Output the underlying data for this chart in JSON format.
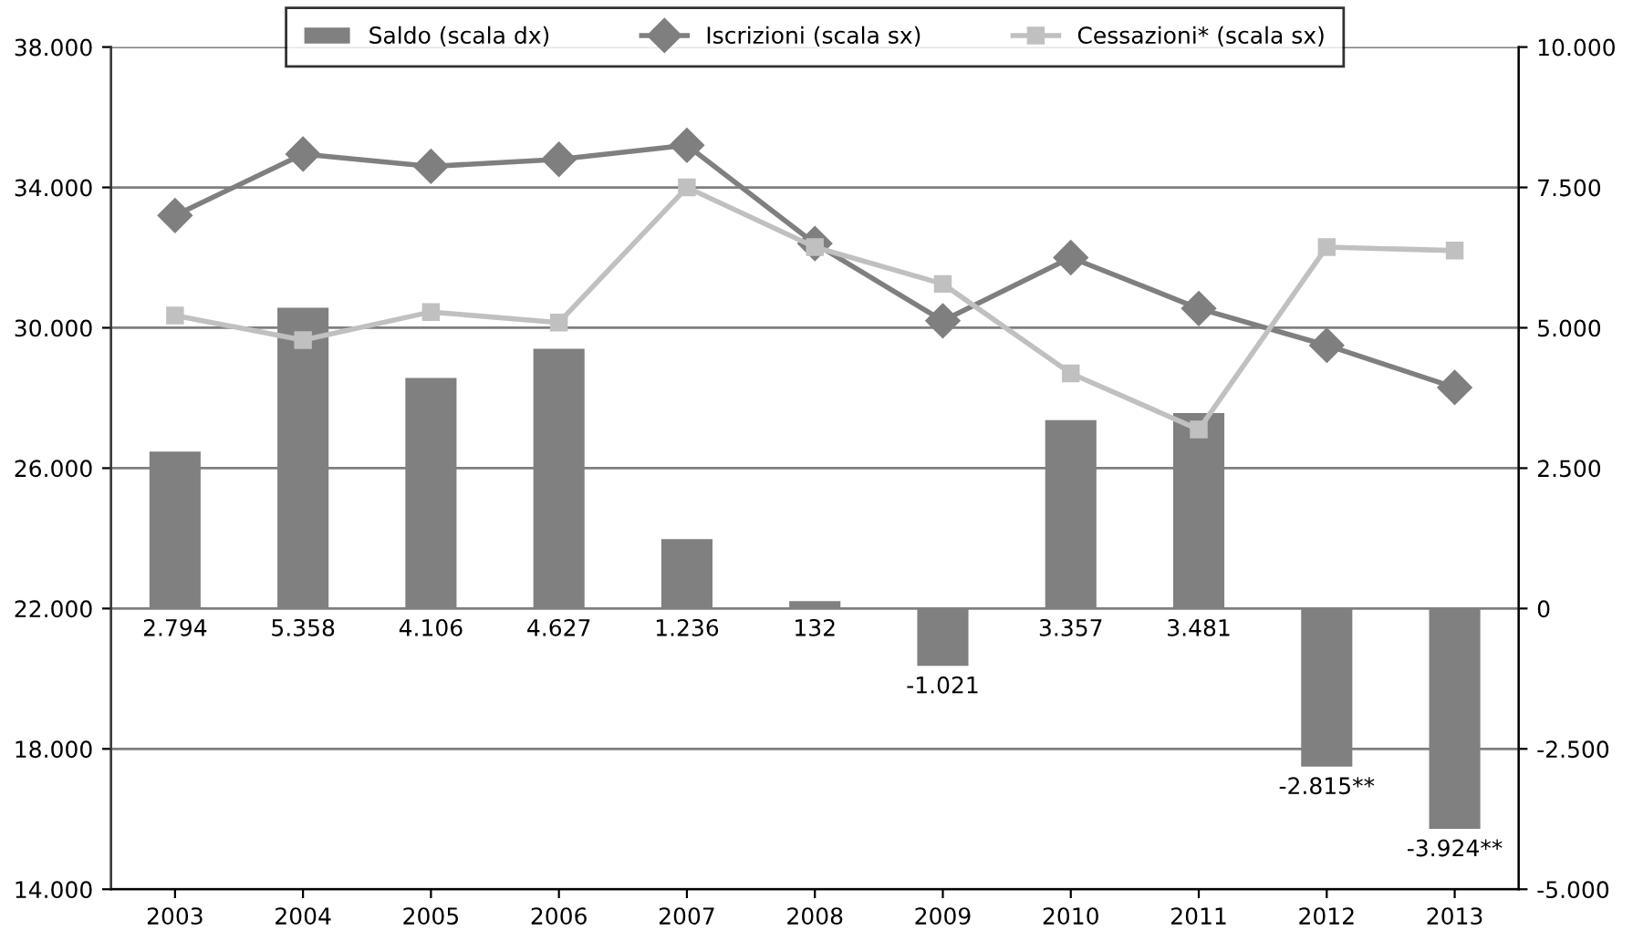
{
  "chart_data": {
    "type": "bar",
    "categories": [
      "2003",
      "2004",
      "2005",
      "2006",
      "2007",
      "2008",
      "2009",
      "2010",
      "2011",
      "2012",
      "2013"
    ],
    "series": [
      {
        "name": "Saldo (scala dx)",
        "axis": "y2",
        "color": "#808080",
        "values": [
          2794,
          5358,
          4106,
          4627,
          1236,
          132,
          -1021,
          3357,
          3481,
          -2815,
          -3924
        ],
        "value_labels": [
          "2.794",
          "5.358",
          "4.106",
          "4.627",
          "1.236",
          "132",
          "-1.021",
          "3.357",
          "3.481",
          "-2.815**",
          "-3.924**"
        ]
      },
      {
        "name": "Iscrizioni (scala sx)",
        "type": "line",
        "color": "#7f7f7f",
        "marker": "diamond",
        "values": [
          33200,
          34950,
          34600,
          34800,
          35200,
          32400,
          30200,
          32000,
          30550,
          29500,
          28300
        ]
      },
      {
        "name": "Cessazioni* (scala sx)",
        "type": "line",
        "color": "#c0c0c0",
        "marker": "square",
        "values": [
          30350,
          29650,
          30450,
          30150,
          34000,
          32300,
          31250,
          28700,
          27100,
          32300,
          32200
        ]
      }
    ],
    "ylim": [
      14000,
      38000
    ],
    "yticks": [
      {
        "value": 14000,
        "label": "14.000"
      },
      {
        "value": 18000,
        "label": "18.000"
      },
      {
        "value": 22000,
        "label": "22.000"
      },
      {
        "value": 26000,
        "label": "26.000"
      },
      {
        "value": 30000,
        "label": "30.000"
      },
      {
        "value": 34000,
        "label": "34.000"
      },
      {
        "value": 38000,
        "label": "38.000"
      }
    ],
    "y2lim": [
      -5000,
      10000
    ],
    "y2ticks": [
      {
        "value": -5000,
        "label": "-5.000"
      },
      {
        "value": -2500,
        "label": "-2.500"
      },
      {
        "value": 0,
        "label": "0"
      },
      {
        "value": 2500,
        "label": "2.500"
      },
      {
        "value": 5000,
        "label": "5.000"
      },
      {
        "value": 7500,
        "label": "7.500"
      },
      {
        "value": 10000,
        "label": "10.000"
      }
    ],
    "grid": "y",
    "legend": "top",
    "line_style": "solid"
  }
}
